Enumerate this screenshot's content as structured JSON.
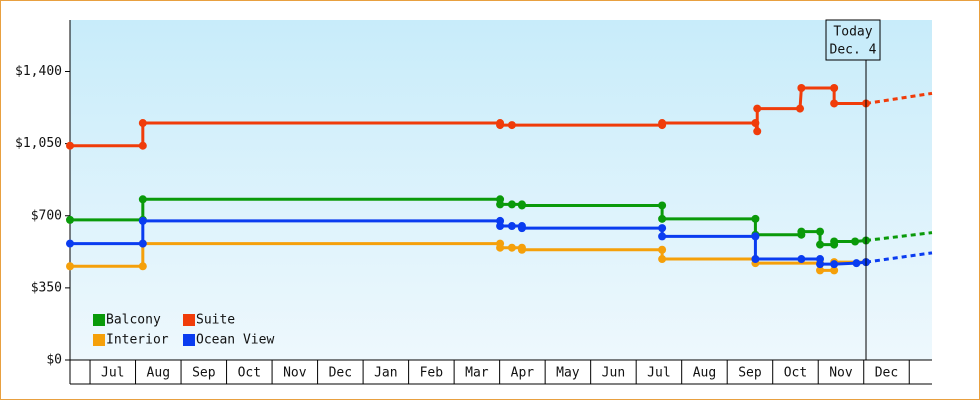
{
  "chart_data": {
    "type": "step-line",
    "ylim": [
      0,
      1650
    ],
    "yticks": [
      {
        "value": 0,
        "label": "$0"
      },
      {
        "value": 350,
        "label": "$350"
      },
      {
        "value": 700,
        "label": "$700"
      },
      {
        "value": 1050,
        "label": "$1,050"
      },
      {
        "value": 1400,
        "label": "$1,400"
      }
    ],
    "xlim": [
      -0.44,
      18.5
    ],
    "categories": [
      "Jul",
      "Aug",
      "Sep",
      "Oct",
      "Nov",
      "Dec",
      "Jan",
      "Feb",
      "Mar",
      "Apr",
      "May",
      "Jun",
      "Jul",
      "Aug",
      "Sep",
      "Oct",
      "Nov",
      "Dec"
    ],
    "today": {
      "x": 17.05,
      "label": "Today",
      "date": "Dec. 4"
    },
    "series": [
      {
        "name": "Balcony",
        "color": "#0a9a0a",
        "x": [
          -0.44,
          1.16,
          1.16,
          9.01,
          9.01,
          9.27,
          9.49,
          9.49,
          12.57,
          12.57,
          14.62,
          14.62,
          15.63,
          15.63,
          16.04,
          16.04,
          16.35,
          16.35,
          16.81,
          17.05
        ],
        "values": [
          680,
          680,
          780,
          780,
          755,
          755,
          755,
          750,
          750,
          685,
          685,
          608,
          608,
          623,
          623,
          560,
          560,
          575,
          575,
          580
        ],
        "forecast": {
          "x": [
            17.05,
            18.5
          ],
          "values": [
            580,
            618
          ]
        }
      },
      {
        "name": "Suite",
        "color": "#f03c0a",
        "x": [
          -0.44,
          1.16,
          1.16,
          9.01,
          9.01,
          9.27,
          12.57,
          12.57,
          14.62,
          14.66,
          14.66,
          15.6,
          15.63,
          16.35,
          16.35,
          17.05
        ],
        "values": [
          1040,
          1040,
          1150,
          1150,
          1140,
          1140,
          1140,
          1150,
          1150,
          1110,
          1220,
          1220,
          1320,
          1320,
          1245,
          1245
        ],
        "forecast": {
          "x": [
            17.05,
            18.5
          ],
          "values": [
            1245,
            1294
          ]
        }
      },
      {
        "name": "Interior",
        "color": "#f5a00a",
        "x": [
          -0.44,
          1.16,
          1.16,
          9.01,
          9.01,
          9.27,
          9.49,
          9.49,
          12.57,
          12.57,
          14.62,
          14.62,
          16.04,
          16.04,
          16.35,
          16.35,
          17.05
        ],
        "values": [
          455,
          455,
          565,
          565,
          545,
          545,
          545,
          535,
          535,
          490,
          490,
          470,
          470,
          435,
          435,
          475,
          475
        ]
      },
      {
        "name": "Ocean View",
        "color": "#0a3cf0",
        "x": [
          -0.44,
          1.16,
          1.16,
          9.01,
          9.01,
          9.27,
          9.49,
          9.49,
          12.57,
          12.57,
          14.62,
          14.62,
          15.63,
          16.04,
          16.04,
          16.35,
          16.84,
          17.05
        ],
        "values": [
          565,
          565,
          675,
          675,
          650,
          650,
          650,
          640,
          640,
          600,
          600,
          490,
          490,
          490,
          465,
          465,
          470,
          475
        ],
        "forecast": {
          "x": [
            17.05,
            18.5
          ],
          "values": [
            475,
            520
          ]
        }
      }
    ]
  }
}
